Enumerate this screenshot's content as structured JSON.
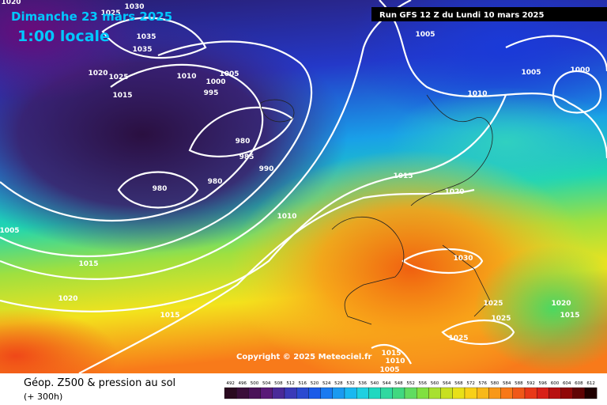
{
  "header": {
    "date": "Dimanche 23 mars 2025",
    "local_time": "1:00 locale",
    "run": "Run GFS 12 Z du Lundi 10 mars 2025"
  },
  "copyright": "Copyright © 2025 Meteociel.fr",
  "footer": {
    "title": "Géop. Z500 & pression au sol",
    "lead": "(+ 300h)"
  },
  "isobar_labels": [
    "1020",
    "1030",
    "1025",
    "1035",
    "1035",
    "1020",
    "1025",
    "1015",
    "1010",
    "1000",
    "1005",
    "995",
    "980",
    "985",
    "990",
    "980",
    "980",
    "1005",
    "1015",
    "1020",
    "1015",
    "1010",
    "1015",
    "1020",
    "1030",
    "1025",
    "1025",
    "1020",
    "1015",
    "1025",
    "1015",
    "1010",
    "1005",
    "1005",
    "1005",
    "1000",
    "1010"
  ],
  "colorbar_labels": [
    "492",
    "496",
    "500",
    "504",
    "508",
    "512",
    "516",
    "520",
    "524",
    "528",
    "532",
    "536",
    "540",
    "544",
    "548",
    "552",
    "556",
    "560",
    "564",
    "568",
    "572",
    "576",
    "580",
    "584",
    "588",
    "592",
    "596",
    "600",
    "604",
    "608",
    "612"
  ]
}
